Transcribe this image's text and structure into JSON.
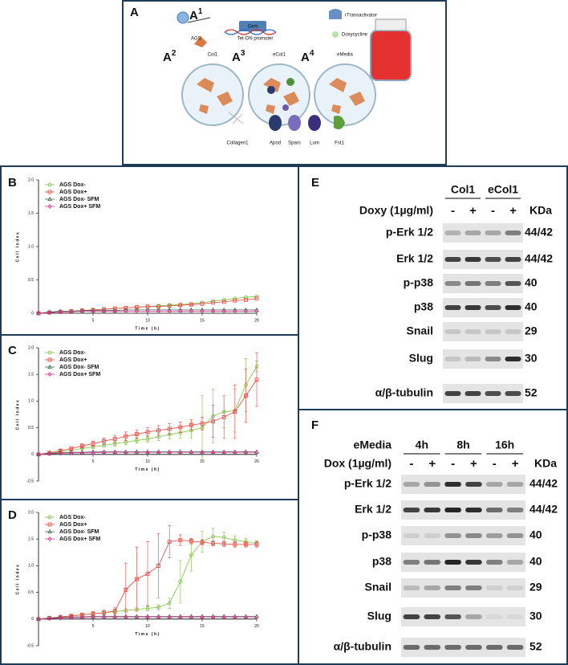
{
  "panel_a": {
    "label": "A",
    "a1": {
      "letter": "A",
      "sup": "1"
    },
    "cell": "AGS",
    "gene": "Gem",
    "promoter": "Tet-ON promoter",
    "legend": [
      "rTransactivator",
      "Doxycycline"
    ],
    "conditions": [
      {
        "letter": "A",
        "sup": "2",
        "name": "Col1"
      },
      {
        "letter": "A",
        "sup": "3",
        "name": "eCol1"
      },
      {
        "letter": "A",
        "sup": "4",
        "name": "eMedia"
      }
    ],
    "components": [
      "Collagen1",
      "Apod",
      "Sparc",
      "Lum",
      "Fst1"
    ]
  },
  "chart_data": [
    {
      "type": "line",
      "panel": "B",
      "ylabel": "Cell Index",
      "xlabel": "Time (h)",
      "legend": "upper left",
      "x": [
        0,
        1,
        2,
        3,
        4,
        5,
        6,
        7,
        8,
        9,
        10,
        11,
        12,
        13,
        14,
        15,
        16,
        17,
        18,
        19,
        20
      ],
      "xlim": [
        0,
        20
      ],
      "xticks": [
        5,
        10,
        15,
        20
      ],
      "ylim": [
        0,
        2
      ],
      "yticks": [
        0,
        {
          "value": 0.5,
          "label": "0.5"
        },
        {
          "value": 1,
          "label": "1.0"
        },
        1.5,
        {
          "value": 2,
          "label": "2.0"
        }
      ],
      "series": [
        {
          "name": "AGS Dox-",
          "color": "#7dc242",
          "marker": "circle",
          "values": [
            0,
            0.01,
            0.02,
            0.03,
            0.04,
            0.05,
            0.06,
            0.07,
            0.08,
            0.09,
            0.1,
            0.11,
            0.12,
            0.13,
            0.14,
            0.16,
            0.18,
            0.2,
            0.22,
            0.24,
            0.25
          ]
        },
        {
          "name": "AGS Dox+",
          "color": "#e8413c",
          "marker": "square",
          "values": [
            0,
            0.01,
            0.02,
            0.03,
            0.04,
            0.05,
            0.06,
            0.07,
            0.08,
            0.09,
            0.1,
            0.1,
            0.11,
            0.12,
            0.13,
            0.14,
            0.16,
            0.17,
            0.19,
            0.2,
            0.22
          ]
        },
        {
          "name": "AGS Dox- SFM",
          "color": "#3f6b4a",
          "marker": "triangle",
          "values": [
            0,
            0.02,
            0.03,
            0.03,
            0.04,
            0.04,
            0.04,
            0.04,
            0.05,
            0.05,
            0.05,
            0.05,
            0.05,
            0.05,
            0.05,
            0.05,
            0.05,
            0.05,
            0.05,
            0.05,
            0.05
          ]
        },
        {
          "name": "AGS Dox+ SFM",
          "color": "#d6338f",
          "marker": "diamond",
          "values": [
            0,
            0.01,
            0.02,
            0.02,
            0.03,
            0.03,
            0.03,
            0.03,
            0.03,
            0.03,
            0.03,
            0.03,
            0.03,
            0.03,
            0.03,
            0.03,
            0.03,
            0.03,
            0.03,
            0.03,
            0.03
          ]
        }
      ]
    },
    {
      "type": "line",
      "panel": "C",
      "ylabel": "Cell Index",
      "xlabel": "Time (h)",
      "legend": "upper left",
      "x": [
        0,
        1,
        2,
        3,
        4,
        5,
        6,
        7,
        8,
        9,
        10,
        11,
        12,
        13,
        14,
        15,
        16,
        17,
        18,
        19,
        20
      ],
      "xlim": [
        0,
        20
      ],
      "xticks": [
        5,
        10,
        15,
        20
      ],
      "ylim": [
        -0.5,
        2
      ],
      "yticks": [
        -0.5,
        0,
        {
          "value": 0.5,
          "label": "0.5"
        },
        {
          "value": 1,
          "label": "1.0"
        },
        1.5,
        {
          "value": 2,
          "label": "2.0"
        }
      ],
      "series": [
        {
          "name": "AGS Dox-",
          "color": "#7dc242",
          "marker": "circle",
          "values": [
            0,
            0.02,
            0.05,
            0.08,
            0.11,
            0.14,
            0.17,
            0.2,
            0.23,
            0.26,
            0.29,
            0.33,
            0.37,
            0.41,
            0.45,
            0.5,
            0.72,
            0.8,
            0.82,
            1.3,
            1.65
          ],
          "errors": [
            0,
            0,
            0.01,
            0.02,
            0.02,
            0.03,
            0.03,
            0.04,
            0.05,
            0.05,
            0.06,
            0.07,
            0.08,
            0.1,
            0.15,
            0.6,
            0.5,
            0.3,
            0.4,
            0.5,
            0.1
          ]
        },
        {
          "name": "AGS Dox+",
          "color": "#e8413c",
          "marker": "square",
          "values": [
            0,
            0.03,
            0.07,
            0.11,
            0.16,
            0.2,
            0.25,
            0.29,
            0.34,
            0.38,
            0.42,
            0.45,
            0.48,
            0.51,
            0.55,
            0.58,
            0.62,
            0.7,
            0.8,
            1.1,
            1.4
          ],
          "errors": [
            0,
            0.01,
            0.02,
            0.03,
            0.04,
            0.05,
            0.06,
            0.07,
            0.08,
            0.08,
            0.08,
            0.09,
            0.1,
            0.1,
            0.1,
            0.12,
            0.3,
            0.4,
            0.5,
            0.5,
            0.5
          ]
        },
        {
          "name": "AGS Dox- SFM",
          "color": "#3f6b4a",
          "marker": "triangle",
          "values": [
            0,
            0.02,
            0.03,
            0.04,
            0.04,
            0.05,
            0.05,
            0.05,
            0.05,
            0.05,
            0.05,
            0.05,
            0.05,
            0.05,
            0.05,
            0.05,
            0.05,
            0.05,
            0.05,
            0.05,
            0.05
          ]
        },
        {
          "name": "AGS Dox+ SFM",
          "color": "#d6338f",
          "marker": "diamond",
          "values": [
            0,
            0.01,
            0.02,
            0.03,
            0.03,
            0.03,
            0.04,
            0.04,
            0.04,
            0.04,
            0.04,
            0.04,
            0.04,
            0.04,
            0.04,
            0.04,
            0.04,
            0.04,
            0.04,
            0.04,
            0.04
          ]
        }
      ]
    },
    {
      "type": "line",
      "panel": "D",
      "ylabel": "Cell Index",
      "xlabel": "Time (h)",
      "legend": "upper left",
      "x": [
        0,
        1,
        2,
        3,
        4,
        5,
        6,
        7,
        8,
        9,
        10,
        11,
        12,
        13,
        14,
        15,
        16,
        17,
        18,
        19,
        20
      ],
      "xlim": [
        0,
        20
      ],
      "xticks": [
        5,
        10,
        15,
        20
      ],
      "ylim": [
        -0.5,
        2
      ],
      "yticks": [
        -0.5,
        0,
        {
          "value": 0.5,
          "label": "0.5"
        },
        {
          "value": 1,
          "label": "1.0"
        },
        1.5,
        {
          "value": 2,
          "label": "2.0"
        }
      ],
      "series": [
        {
          "name": "AGS Dox-",
          "color": "#7dc242",
          "marker": "circle",
          "values": [
            0,
            0.02,
            0.04,
            0.06,
            0.08,
            0.1,
            0.12,
            0.14,
            0.16,
            0.18,
            0.2,
            0.22,
            0.3,
            0.7,
            1.2,
            1.45,
            1.55,
            1.53,
            1.48,
            1.45,
            1.42
          ],
          "errors": [
            0,
            0,
            0.01,
            0.01,
            0.02,
            0.02,
            0.02,
            0.03,
            0.03,
            0.03,
            0.04,
            0.05,
            0.1,
            0.4,
            0.3,
            0.2,
            0.15,
            0.1,
            0.08,
            0.06,
            0.05
          ]
        },
        {
          "name": "AGS Dox+",
          "color": "#e8413c",
          "marker": "square",
          "values": [
            0,
            0.02,
            0.04,
            0.06,
            0.08,
            0.1,
            0.12,
            0.15,
            0.55,
            0.75,
            0.85,
            1,
            1.45,
            1.48,
            1.46,
            1.44,
            1.42,
            1.41,
            1.4,
            1.4,
            1.4
          ],
          "errors": [
            0,
            0,
            0.01,
            0.02,
            0.03,
            0.04,
            0.05,
            0.06,
            0.5,
            0.6,
            0.6,
            0.6,
            0.3,
            0.1,
            0.05,
            0.05,
            0.05,
            0.05,
            0.05,
            0.05,
            0.05
          ]
        },
        {
          "name": "AGS Dox- SFM",
          "color": "#3f6b4a",
          "marker": "triangle",
          "values": [
            0,
            0.02,
            0.03,
            0.04,
            0.04,
            0.05,
            0.05,
            0.05,
            0.05,
            0.05,
            0.05,
            0.05,
            0.05,
            0.05,
            0.05,
            0.05,
            0.05,
            0.05,
            0.05,
            0.05,
            0.05
          ]
        },
        {
          "name": "AGS Dox+ SFM",
          "color": "#d6338f",
          "marker": "diamond",
          "values": [
            0,
            0.01,
            0.02,
            0.03,
            0.03,
            0.04,
            0.04,
            0.04,
            0.04,
            0.04,
            0.04,
            0.04,
            0.04,
            0.04,
            0.04,
            0.04,
            0.04,
            0.04,
            0.04,
            0.04,
            0.04
          ]
        }
      ]
    }
  ],
  "panel_e": {
    "label": "E",
    "groups": [
      "Col1",
      "eCol1"
    ],
    "treatment": "Doxy (1µg/ml)",
    "lanes": [
      "-",
      "+",
      "-",
      "+"
    ],
    "unit": "KDa",
    "rows": [
      {
        "protein": "p-Erk 1/2",
        "kda": "44/42"
      },
      {
        "protein": "Erk 1/2",
        "kda": "44/42"
      },
      {
        "protein": "p-p38",
        "kda": "40"
      },
      {
        "protein": "p38",
        "kda": "40"
      },
      {
        "protein": "Snail",
        "kda": "29"
      },
      {
        "protein": "Slug",
        "kda": "30"
      },
      {
        "protein": "α/β-tubulin",
        "kda": "52"
      }
    ]
  },
  "panel_f": {
    "label": "F",
    "medium": "eMedia",
    "groups": [
      "4h",
      "8h",
      "16h"
    ],
    "treatment": "Dox (1µg/ml)",
    "lanes": [
      "-",
      "+",
      "-",
      "+",
      "-",
      "+"
    ],
    "unit": "KDa",
    "rows": [
      {
        "protein": "p-Erk 1/2",
        "kda": "44/42"
      },
      {
        "protein": "Erk 1/2",
        "kda": "44/42"
      },
      {
        "protein": "p-p38",
        "kda": "40"
      },
      {
        "protein": "p38",
        "kda": "40"
      },
      {
        "protein": "Snail",
        "kda": "29"
      },
      {
        "protein": "Slug",
        "kda": "30"
      },
      {
        "protein": "α/β-tubulin",
        "kda": "52"
      }
    ]
  }
}
